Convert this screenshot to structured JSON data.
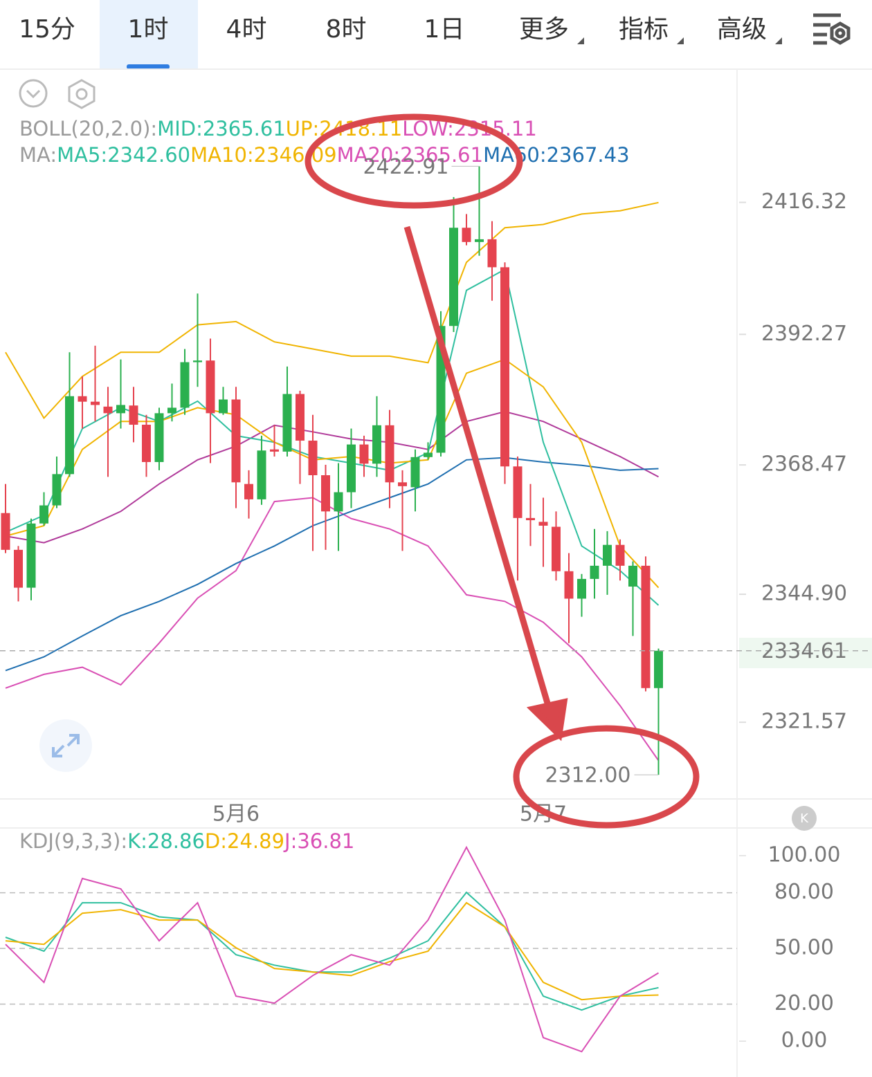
{
  "tabs": [
    "15分",
    "1时",
    "4时",
    "8时",
    "1日",
    "更多",
    "指标",
    "高级"
  ],
  "active_tab": 1,
  "chart_data": [
    {
      "type": "candlestick",
      "up_color": "#2bb04f",
      "down_color": "#e5434f",
      "legend": [
        [
          {
            "text": "BOLL(20,2.0):",
            "color": "#9a9a9a"
          },
          {
            "text": "MID:2365.61",
            "color": "#2fbf9f"
          },
          {
            "text": "UP:2418.11",
            "color": "#f0b400"
          },
          {
            "text": "LOW:2315.11",
            "color": "#d94fb4"
          }
        ],
        [
          {
            "text": "MA:",
            "color": "#9a9a9a"
          },
          {
            "text": "MA5:2342.60",
            "color": "#2fbf9f"
          },
          {
            "text": "MA10:2346.09",
            "color": "#f0b400"
          },
          {
            "text": "MA20:2365.61",
            "color": "#d94fb4"
          },
          {
            "text": "MA60:2367.43",
            "color": "#1f6fb0"
          }
        ]
      ],
      "open": [
        2359.7,
        2353.0,
        2346.1,
        2357.8,
        2361.1,
        2366.8,
        2381.0,
        2380.0,
        2379.1,
        2377.9,
        2379.3,
        2375.8,
        2369.0,
        2377.9,
        2378.9,
        2387.2,
        2387.5,
        2377.9,
        2380.4,
        2365.0,
        2362.2,
        2371.3,
        2370.9,
        2381.4,
        2372.9,
        2366.6,
        2360.0,
        2363.5,
        2372.2,
        2368.7,
        2375.7,
        2365.3,
        2364.4,
        2369.9,
        2370.7,
        2393.8,
        2411.7,
        2409.1,
        2409.6,
        2404.5,
        2368.2,
        2358.8,
        2358.1,
        2357.2,
        2349.1,
        2344.1,
        2347.7,
        2350.1,
        2353.9,
        2346.3,
        2350.1,
        2327.8
      ],
      "high": [
        2365.0,
        2353.7,
        2358.7,
        2363.5,
        2370.0,
        2389.0,
        2384.6,
        2390.2,
        2382.7,
        2387.7,
        2382.7,
        2377.6,
        2378.9,
        2383.3,
        2389.6,
        2399.7,
        2391.5,
        2382.7,
        2382.7,
        2367.5,
        2373.8,
        2375.7,
        2386.4,
        2382.0,
        2377.6,
        2368.5,
        2368.8,
        2375.1,
        2373.8,
        2381.0,
        2378.5,
        2367.5,
        2371.3,
        2372.6,
        2396.5,
        2417.3,
        2414.2,
        2422.91,
        2412.9,
        2405.4,
        2370.0,
        2365.0,
        2362.5,
        2360.0,
        2352.4,
        2348.6,
        2356.8,
        2356.4,
        2354.9,
        2350.9,
        2351.8,
        2335.0
      ],
      "low": [
        2352.4,
        2343.6,
        2343.8,
        2357.4,
        2360.6,
        2366.3,
        2375.1,
        2376.4,
        2366.3,
        2375.1,
        2372.6,
        2366.3,
        2367.5,
        2376.4,
        2377.6,
        2382.7,
        2368.8,
        2377.6,
        2360.6,
        2358.7,
        2361.2,
        2370.0,
        2370.0,
        2365.0,
        2352.8,
        2353.0,
        2352.8,
        2360.6,
        2366.3,
        2366.3,
        2360.6,
        2352.8,
        2360.0,
        2369.4,
        2370.0,
        2392.7,
        2408.5,
        2406.6,
        2398.4,
        2365.0,
        2347.4,
        2353.7,
        2349.9,
        2347.4,
        2336.0,
        2340.8,
        2344.1,
        2344.8,
        2347.4,
        2337.3,
        2327.2,
        2312.0
      ],
      "close": [
        2353.0,
        2346.1,
        2357.8,
        2361.1,
        2366.8,
        2381.0,
        2380.0,
        2379.4,
        2377.9,
        2379.4,
        2375.8,
        2369.0,
        2377.9,
        2378.9,
        2387.2,
        2387.5,
        2377.9,
        2380.4,
        2365.3,
        2362.2,
        2371.1,
        2370.9,
        2381.4,
        2372.9,
        2366.6,
        2360.0,
        2363.5,
        2372.2,
        2368.7,
        2375.7,
        2365.3,
        2364.6,
        2369.9,
        2370.7,
        2393.8,
        2411.7,
        2409.1,
        2409.6,
        2404.5,
        2368.2,
        2358.8,
        2358.4,
        2357.4,
        2349.1,
        2344.1,
        2347.7,
        2350.1,
        2353.9,
        2350.1,
        2350.1,
        2327.8,
        2334.61
      ],
      "high_label": "2422.91",
      "low_label": "2312.00",
      "last_label": "2334.61",
      "date_labels": [
        {
          "at": 18,
          "label": "5月6"
        },
        {
          "at": 42,
          "label": "5月7"
        }
      ],
      "line_x": [
        0,
        3,
        6,
        9,
        12,
        15,
        18,
        21,
        24,
        27,
        30,
        33,
        36,
        39,
        42,
        45,
        48,
        51
      ],
      "lines": [
        {
          "color": "#f0b400",
          "values": [
            2389.0,
            2377.0,
            2384.6,
            2389.0,
            2389.0,
            2394.0,
            2394.6,
            2390.9,
            2389.6,
            2388.3,
            2388.3,
            2387.1,
            2405.4,
            2411.7,
            2412.3,
            2414.2,
            2414.8,
            2416.3
          ]
        },
        {
          "color": "#d94fb4",
          "values": [
            2327.8,
            2330.3,
            2331.6,
            2328.4,
            2336.0,
            2344.2,
            2349.2,
            2361.8,
            2362.5,
            2358.7,
            2356.8,
            2353.7,
            2344.8,
            2343.6,
            2339.8,
            2333.5,
            2324.6,
            2314.6
          ]
        },
        {
          "color": "#b03a9a",
          "values": [
            2355.5,
            2354.3,
            2356.8,
            2360.0,
            2365.0,
            2369.4,
            2371.9,
            2375.7,
            2374.5,
            2373.2,
            2372.6,
            2371.3,
            2376.4,
            2378.2,
            2376.4,
            2373.2,
            2370.0,
            2366.3
          ]
        },
        {
          "color": "#1f6fb0",
          "values": [
            2331.0,
            2333.5,
            2337.3,
            2341.0,
            2343.6,
            2346.7,
            2350.5,
            2353.7,
            2357.4,
            2360.0,
            2362.5,
            2365.0,
            2369.4,
            2369.8,
            2369.0,
            2368.4,
            2367.5,
            2367.8
          ]
        },
        {
          "color": "#2fbf9f",
          "values": [
            2356.2,
            2359.3,
            2375.1,
            2378.9,
            2376.4,
            2380.1,
            2373.8,
            2372.6,
            2370.0,
            2368.8,
            2367.5,
            2370.7,
            2400.3,
            2404.1,
            2372.6,
            2353.7,
            2349.2,
            2342.9
          ]
        },
        {
          "color": "#f0b400",
          "values": [
            2355.5,
            2357.4,
            2371.3,
            2376.4,
            2376.4,
            2378.9,
            2377.6,
            2372.6,
            2369.4,
            2370.0,
            2368.8,
            2369.4,
            2385.2,
            2387.7,
            2382.7,
            2372.6,
            2353.7,
            2346.1
          ]
        }
      ],
      "ylim": [
        2307.6,
        2440.6
      ],
      "yticks": [
        2416.32,
        2392.27,
        2368.47,
        {
          "value": 2344.9,
          "label": "2344.90"
        },
        2321.57
      ]
    },
    {
      "type": "line",
      "legend": [
        {
          "text": "KDJ(9,3,3):",
          "color": "#9a9a9a"
        },
        {
          "text": "K:28.86",
          "color": "#2fbf9f"
        },
        {
          "text": "D:24.89",
          "color": "#f0b400"
        },
        {
          "text": "J:36.81",
          "color": "#d94fb4"
        }
      ],
      "x": [
        0,
        3,
        6,
        9,
        12,
        15,
        18,
        21,
        24,
        27,
        30,
        33,
        36,
        39,
        42,
        45,
        48,
        51
      ],
      "series": [
        {
          "color": "#2fbf9f",
          "values": [
            56,
            48.5,
            74.6,
            74.6,
            67,
            65.3,
            46.6,
            41,
            37.3,
            37.3,
            44.8,
            54.1,
            80.2,
            61.6,
            24.3,
            16.8,
            24.3,
            28.86
          ]
        },
        {
          "color": "#f0b400",
          "values": [
            54.1,
            52.2,
            69,
            70.9,
            65.3,
            65.3,
            50.4,
            39.2,
            37.3,
            35.4,
            42.9,
            48.5,
            74.6,
            61.6,
            31.7,
            22.4,
            24.3,
            24.89
          ]
        },
        {
          "color": "#d94fb4",
          "values": [
            52.2,
            31.7,
            87.7,
            82.1,
            54.1,
            74.6,
            24.3,
            20.5,
            35.4,
            46.6,
            41,
            65.3,
            104.5,
            65.3,
            1.9,
            -5.6,
            24.3,
            36.81
          ]
        }
      ],
      "ylim": [
        -19.3,
        113.8
      ],
      "yticks": [
        {
          "value": 100,
          "label": "100.00"
        },
        {
          "value": 80,
          "label": "80.00"
        },
        {
          "value": 50,
          "label": "50.00"
        },
        {
          "value": 20,
          "label": "20.00"
        },
        {
          "value": 0,
          "label": "0.00"
        }
      ]
    }
  ]
}
